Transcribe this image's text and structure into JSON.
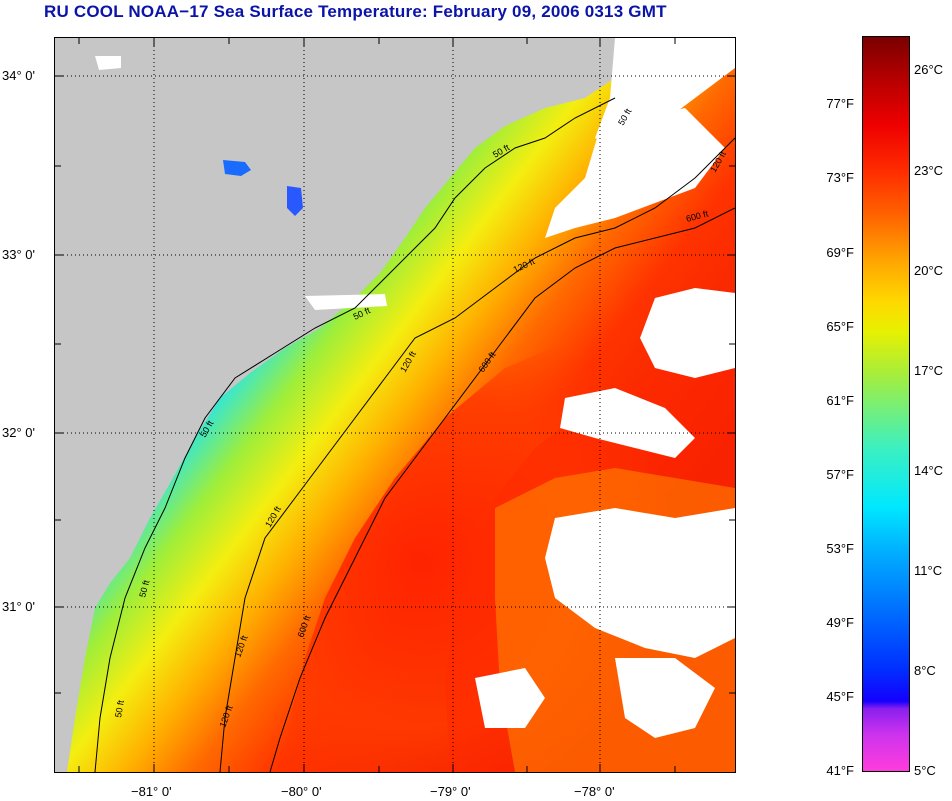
{
  "title": "RU COOL  NOAA−17  Sea Surface Temperature:  February 09, 2006 0313 GMT",
  "map": {
    "lat_labels": [
      "34° 0'",
      "33° 0'",
      "32° 0'",
      "31° 0'"
    ],
    "lon_labels": [
      "−81° 0'",
      "−80° 0'",
      "−79° 0'",
      "−78° 0'"
    ],
    "contour_labels": [
      "50 ft",
      "120 ft",
      "600 ft"
    ],
    "colors": {
      "land": "#c6c6c6",
      "cloud": "#ffffff",
      "contour": "#000000",
      "grid": "#000000"
    }
  },
  "colorbar": {
    "fahrenheit_labels": [
      "77°F",
      "73°F",
      "69°F",
      "65°F",
      "61°F",
      "57°F",
      "53°F",
      "49°F",
      "45°F",
      "41°F"
    ],
    "celsius_labels": [
      "26°C",
      "23°C",
      "20°C",
      "17°C",
      "14°C",
      "11°C",
      "8°C",
      "5°C"
    ]
  }
}
